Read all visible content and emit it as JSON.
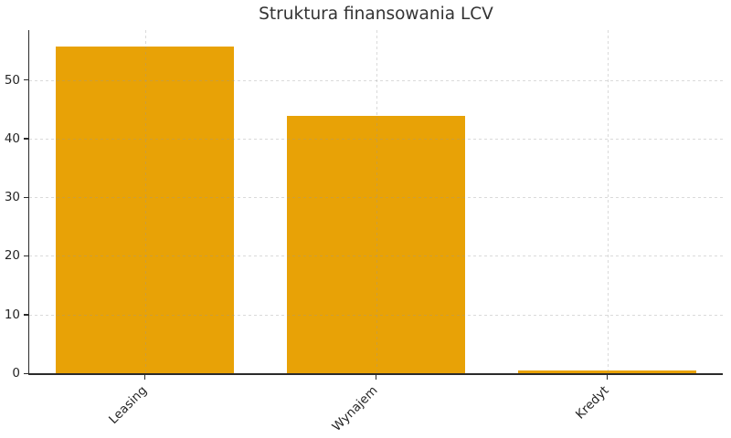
{
  "title": "Struktura finansowania LCV",
  "colors": {
    "background": "#ffffff",
    "bar": "#E8A206",
    "axis": "#2b2b2b",
    "grid": "#969696",
    "title_text": "#333333",
    "tick_text": "#262626"
  },
  "chart_data": {
    "type": "bar",
    "title": "Struktura finansowania LCV",
    "categories": [
      "Leasing",
      "Wynajem",
      "Kredyt"
    ],
    "values": [
      55.7,
      43.8,
      0.5
    ],
    "xlabel": "",
    "ylabel": "",
    "ylim": [
      0,
      58.5
    ],
    "yticks": [
      0,
      10,
      20,
      30,
      40,
      50
    ],
    "grid": "dashed, light gray, horizontal and vertical, drawn above bars",
    "legend": "none",
    "x_tick_rotation_deg": 45,
    "bar_color": "#E8A206"
  }
}
